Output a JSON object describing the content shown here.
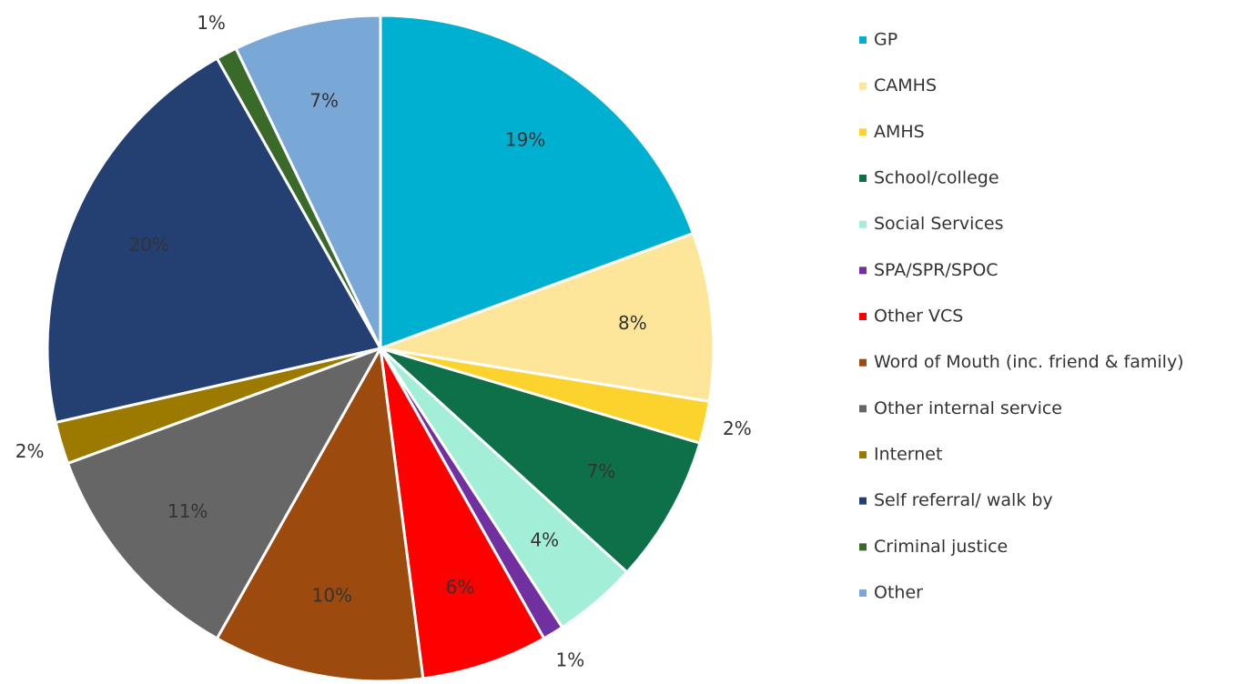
{
  "chart_data": {
    "type": "pie",
    "categories": [
      "GP",
      "CAMHS",
      "AMHS",
      "School/college",
      "Social Services",
      "SPA/SPR/SPOC",
      "Other VCS",
      "Word of Mouth (inc. friend & family)",
      "Other internal service",
      "Internet",
      "Self referral/ walk by",
      "Criminal justice",
      "Other"
    ],
    "values": [
      19,
      8,
      2,
      7,
      4,
      1,
      6,
      10,
      11,
      2,
      20,
      1,
      7
    ],
    "value_labels": [
      "19%",
      "8%",
      "2%",
      "7%",
      "4%",
      "1%",
      "6%",
      "10%",
      "11%",
      "2%",
      "20%",
      "1%",
      "7%"
    ],
    "colors": [
      "#00b0d0",
      "#fde699",
      "#fcd22c",
      "#0e7048",
      "#a2eed6",
      "#7030a0",
      "#fe0000",
      "#9c4a0e",
      "#666666",
      "#9c7a00",
      "#243f72",
      "#3a6a2a",
      "#7aa8d6"
    ],
    "legend": "right"
  }
}
